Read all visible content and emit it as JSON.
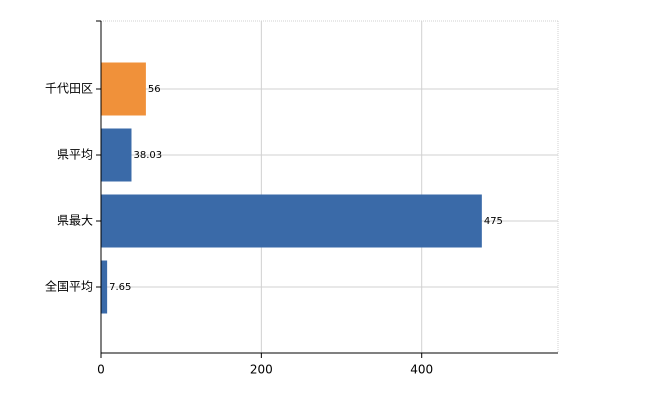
{
  "chart_data": {
    "type": "bar",
    "orientation": "horizontal",
    "categories": [
      "千代田区",
      "県平均",
      "県最大",
      "全国平均"
    ],
    "values": [
      56,
      38.03,
      475,
      7.65
    ],
    "colors": [
      "#f0913a",
      "#3a6aa8",
      "#3a6aa8",
      "#3a6aa8"
    ],
    "xlim": [
      0,
      570
    ],
    "xticks": [
      0,
      200,
      400
    ],
    "grid": true
  }
}
